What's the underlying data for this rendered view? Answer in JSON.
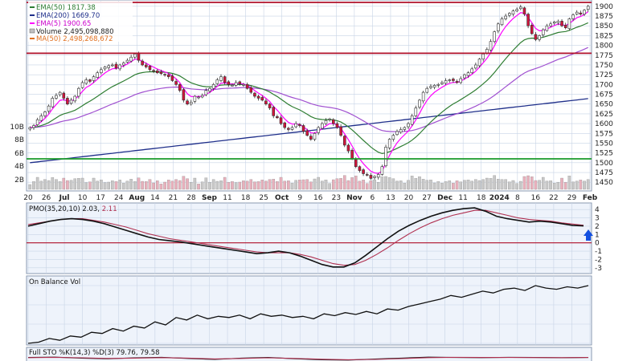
{
  "legend": {
    "ema50": "EMA(50) 1817.38",
    "ema200": "EMA(200) 1669.70",
    "ema5": "EMA(5) 1900.65",
    "volume": "Volume 2,495,098,880",
    "ma50": "MA(50) 2,498,268,672"
  },
  "panels": {
    "pmo_title": "PMO(35,20,10) 2.03, 2.11",
    "pmo_value_a": "2.03",
    "pmo_value_b": "2.11",
    "obv_title": "On Balance Vol",
    "sto_title": "Full STO %K(14,3) %D(3) 79.76, 79.58"
  },
  "x_labels": [
    "20",
    "26",
    "Jul",
    "10",
    "17",
    "24",
    "Aug",
    "14",
    "21",
    "28",
    "Sep",
    "11",
    "18",
    "25",
    "Oct",
    "9",
    "16",
    "23",
    "Nov",
    "6",
    "13",
    "20",
    "27",
    "Dec",
    "11",
    "18",
    "2024",
    "8",
    "16",
    "22",
    "29",
    "Feb"
  ],
  "colors": {
    "background": "#ffffff",
    "panel_bg": "#eef3fb",
    "grid": "#c8d4e6",
    "up_candle": "#ffffff",
    "down_candle": "#d2143c",
    "candle_outline": "#303030",
    "ema5": "#ff00ff",
    "ema50": "#2e7d32",
    "ema200": "#1f2f8a",
    "ma50": "#e07020",
    "pmo": "#111111",
    "pmo_signal": "#b03050",
    "resistance": "#b0102a",
    "support": "#1a9a2a",
    "volume": "#bfbfbf",
    "arrow": "#1450e0"
  },
  "chart_data": [
    {
      "type": "candlestick",
      "panel": "price",
      "y_ticks": [
        1900,
        1875,
        1850,
        1825,
        1800,
        1775,
        1750,
        1725,
        1700,
        1675,
        1650,
        1625,
        1600,
        1575,
        1550,
        1525,
        1500,
        1475,
        1450
      ],
      "ylim": [
        1432,
        1912
      ],
      "x_count": 150,
      "levels": [
        {
          "value": 1910,
          "color": "resistance"
        },
        {
          "value": 1780,
          "color": "resistance"
        },
        {
          "value": 1510,
          "color": "support"
        }
      ],
      "close": [
        1590,
        1595,
        1610,
        1620,
        1630,
        1645,
        1665,
        1672,
        1680,
        1665,
        1650,
        1660,
        1670,
        1690,
        1705,
        1712,
        1708,
        1720,
        1730,
        1738,
        1745,
        1748,
        1750,
        1742,
        1750,
        1755,
        1762,
        1770,
        1778,
        1762,
        1750,
        1745,
        1738,
        1735,
        1730,
        1728,
        1725,
        1720,
        1710,
        1700,
        1685,
        1660,
        1650,
        1655,
        1670,
        1668,
        1672,
        1685,
        1690,
        1700,
        1712,
        1720,
        1705,
        1700,
        1698,
        1705,
        1702,
        1700,
        1690,
        1680,
        1670,
        1665,
        1660,
        1650,
        1640,
        1620,
        1615,
        1600,
        1590,
        1585,
        1590,
        1600,
        1595,
        1580,
        1570,
        1560,
        1575,
        1590,
        1600,
        1608,
        1612,
        1600,
        1590,
        1570,
        1545,
        1530,
        1510,
        1490,
        1480,
        1472,
        1468,
        1460,
        1465,
        1470,
        1490,
        1540,
        1560,
        1570,
        1580,
        1585,
        1590,
        1600,
        1620,
        1640,
        1660,
        1680,
        1690,
        1695,
        1698,
        1700,
        1705,
        1710,
        1712,
        1710,
        1705,
        1715,
        1725,
        1730,
        1740,
        1750,
        1765,
        1778,
        1790,
        1810,
        1835,
        1855,
        1868,
        1875,
        1882,
        1888,
        1892,
        1898,
        1880,
        1850,
        1830,
        1815,
        1825,
        1840,
        1850,
        1855,
        1860,
        1862,
        1850,
        1845,
        1868,
        1878,
        1885,
        1880,
        1890,
        1900
      ],
      "volume_share": "scaled"
    },
    {
      "type": "line",
      "panel": "pmo",
      "title": "PMO(35,20,10) 2.03, 2.11",
      "y_ticks": [
        4,
        3,
        2,
        1,
        0,
        -1,
        -2,
        -3
      ],
      "ylim": [
        -3.5,
        4.5
      ],
      "zero_line": 0,
      "series": [
        {
          "name": "PMO",
          "values": [
            2.0,
            2.3,
            2.6,
            2.8,
            2.9,
            2.8,
            2.6,
            2.3,
            1.9,
            1.5,
            1.1,
            0.7,
            0.4,
            0.25,
            0.1,
            -0.1,
            -0.3,
            -0.5,
            -0.7,
            -0.9,
            -1.1,
            -1.3,
            -1.2,
            -1.0,
            -1.2,
            -1.6,
            -2.1,
            -2.6,
            -2.9,
            -2.9,
            -2.4,
            -1.5,
            -0.5,
            0.5,
            1.4,
            2.1,
            2.7,
            3.2,
            3.6,
            3.9,
            4.1,
            4.2,
            3.8,
            3.2,
            2.9,
            2.7,
            2.5,
            2.6,
            2.5,
            2.3,
            2.1,
            2.03
          ]
        },
        {
          "name": "Signal",
          "values": [
            2.2,
            2.4,
            2.6,
            2.8,
            2.9,
            2.9,
            2.7,
            2.5,
            2.2,
            1.9,
            1.5,
            1.1,
            0.8,
            0.5,
            0.3,
            0.1,
            -0.1,
            -0.3,
            -0.5,
            -0.7,
            -0.9,
            -1.1,
            -1.2,
            -1.2,
            -1.2,
            -1.4,
            -1.7,
            -2.1,
            -2.5,
            -2.7,
            -2.6,
            -2.1,
            -1.4,
            -0.6,
            0.3,
            1.1,
            1.8,
            2.4,
            2.9,
            3.3,
            3.6,
            3.9,
            3.9,
            3.6,
            3.3,
            3.0,
            2.8,
            2.7,
            2.6,
            2.4,
            2.25,
            2.11
          ]
        }
      ]
    },
    {
      "type": "line",
      "panel": "obv",
      "title": "On Balance Vol",
      "series": [
        {
          "name": "OBV",
          "values": [
            10,
            12,
            18,
            15,
            22,
            20,
            28,
            26,
            34,
            30,
            38,
            35,
            45,
            40,
            52,
            48,
            56,
            50,
            54,
            52,
            56,
            50,
            58,
            54,
            56,
            52,
            54,
            50,
            58,
            55,
            60,
            57,
            62,
            58,
            66,
            64,
            70,
            74,
            78,
            82,
            88,
            85,
            90,
            95,
            92,
            98,
            100,
            96,
            104,
            100,
            98,
            102,
            100,
            104
          ]
        }
      ]
    },
    {
      "type": "line",
      "panel": "stochastic",
      "title": "Full STO %K(14,3) %D(3) 79.76, 79.58",
      "series": [
        {
          "name": "%K",
          "values": [
            80,
            85,
            70,
            60,
            75,
            82,
            65,
            50,
            70,
            80,
            60,
            45,
            40,
            55,
            70,
            85,
            80,
            78,
            82,
            80,
            76,
            79.76
          ]
        },
        {
          "name": "%D",
          "values": [
            78,
            82,
            75,
            65,
            70,
            78,
            70,
            58,
            65,
            75,
            65,
            52,
            45,
            50,
            62,
            78,
            82,
            80,
            80,
            79,
            78,
            79.58
          ]
        }
      ]
    }
  ]
}
